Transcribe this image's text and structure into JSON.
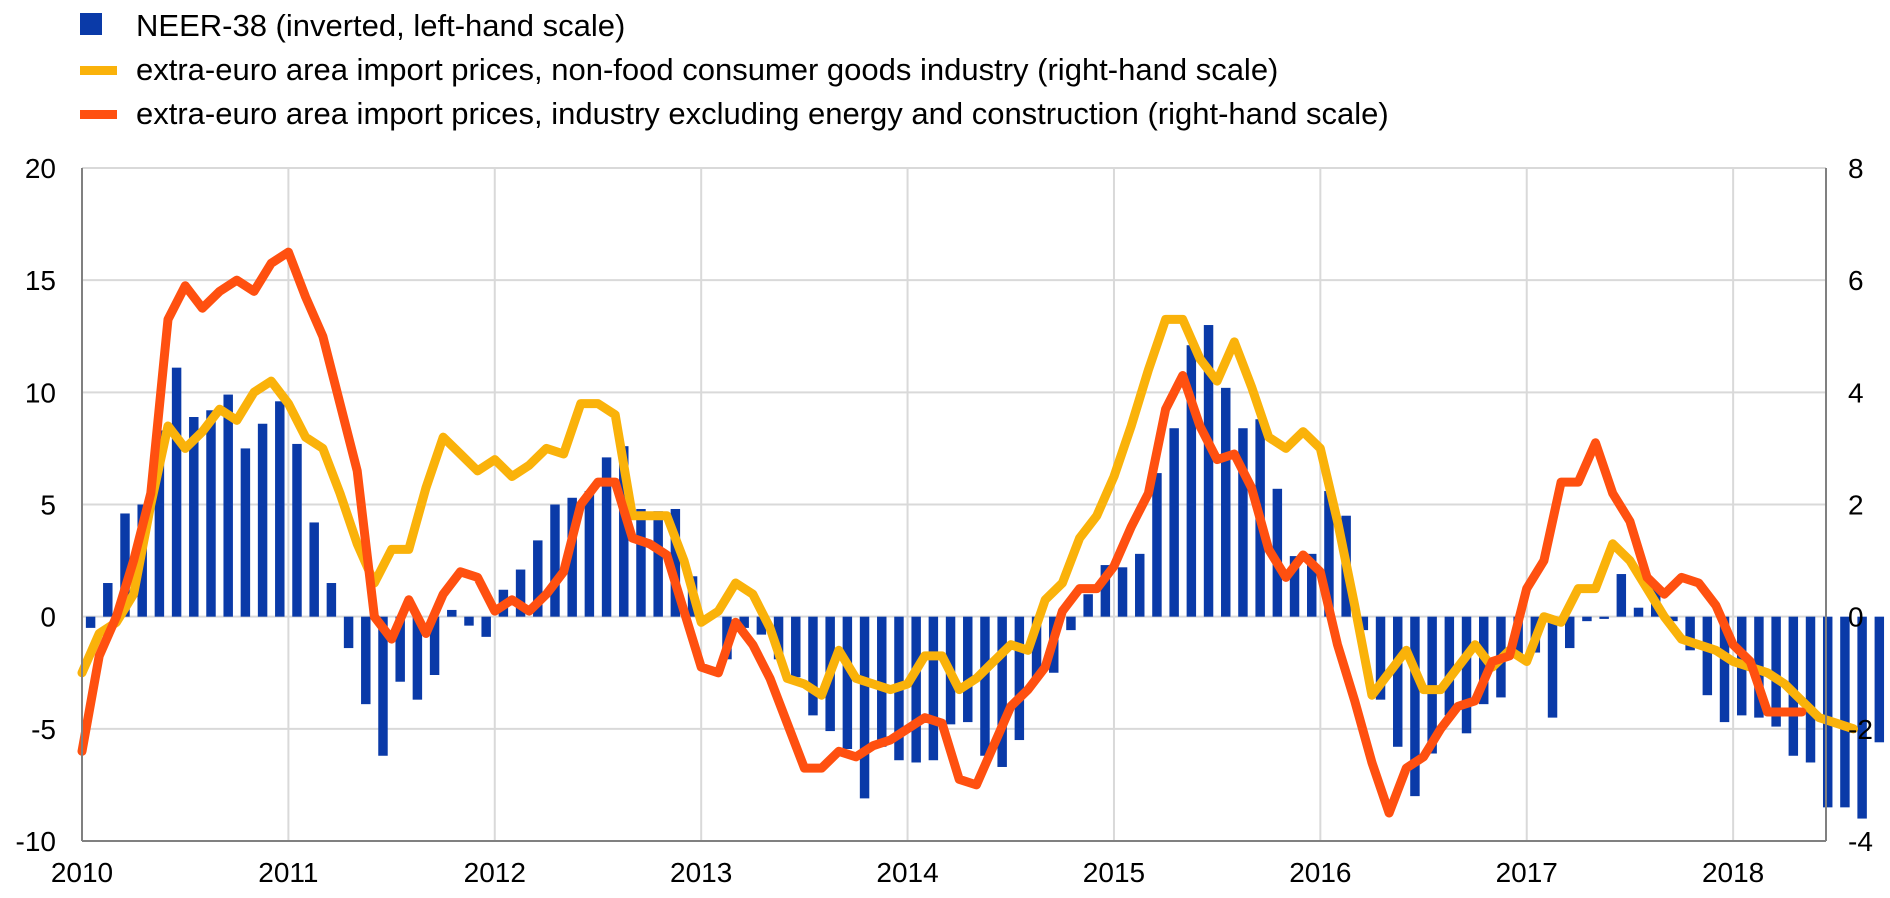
{
  "colors": {
    "neer": "#0a3aa8",
    "nonfood": "#fab20a",
    "industry": "#ff5010",
    "grid": "#d9d9d9",
    "axis": "#808080"
  },
  "chart_data": {
    "type": "bar+line",
    "title": "",
    "xlabel": "",
    "ylabel_left": "",
    "ylabel_right": "",
    "grid": true,
    "legend_position": "top-left",
    "x_tick_labels": [
      "2010",
      "2011",
      "2012",
      "2013",
      "2014",
      "2015",
      "2016",
      "2017",
      "2018"
    ],
    "x_range": [
      2010.0,
      2018.45
    ],
    "y_left": {
      "range": [
        -10,
        20
      ],
      "ticks": [
        -10,
        -5,
        0,
        5,
        10,
        15,
        20
      ]
    },
    "y_right": {
      "range": [
        -4,
        8
      ],
      "ticks": [
        -4,
        -2,
        0,
        2,
        4,
        6,
        8
      ]
    },
    "legend": [
      {
        "label": "NEER-38 (inverted, left-hand scale)",
        "kind": "bar",
        "color_key": "neer"
      },
      {
        "label": "extra-euro area import prices, non-food consumer goods industry (right-hand scale)",
        "kind": "line",
        "color_key": "nonfood"
      },
      {
        "label": "extra-euro area import prices, industry excluding energy and construction (right-hand scale)",
        "kind": "line",
        "color_key": "industry"
      }
    ],
    "series": [
      {
        "name": "NEER-38 (inverted, left-hand scale)",
        "type": "bar",
        "axis": "left",
        "start": "2010-01",
        "frequency": "monthly",
        "values": [
          -0.5,
          1.5,
          4.6,
          5.0,
          8.3,
          11.1,
          8.9,
          9.2,
          9.9,
          7.5,
          8.6,
          9.6,
          7.7,
          4.2,
          1.5,
          -1.4,
          -3.9,
          -6.2,
          -2.9,
          -3.7,
          -2.6,
          0.3,
          -0.4,
          -0.9,
          1.2,
          2.1,
          3.4,
          5.0,
          5.3,
          5.6,
          7.1,
          7.6,
          4.8,
          4.7,
          4.8,
          1.8,
          -0.1,
          -1.9,
          -0.5,
          -0.8,
          -1.9,
          -2.7,
          -4.4,
          -5.1,
          -5.9,
          -8.1,
          -5.8,
          -6.4,
          -6.5,
          -6.4,
          -4.8,
          -4.7,
          -6.2,
          -6.7,
          -5.5,
          -2.8,
          -2.5,
          -0.6,
          1.0,
          2.3,
          2.2,
          2.8,
          6.4,
          8.4,
          12.1,
          13.0,
          10.2,
          8.4,
          8.8,
          5.7,
          2.7,
          2.8,
          5.6,
          4.5,
          -0.6,
          -3.7,
          -5.8,
          -8.0,
          -6.1,
          -4.4,
          -5.2,
          -3.9,
          -3.6,
          -1.8,
          -1.6,
          -4.5,
          -1.4,
          -0.2,
          -0.1,
          1.9,
          0.4,
          1.4,
          -0.2,
          -1.5,
          -3.5,
          -4.7,
          -4.4,
          -4.5,
          -4.9,
          -6.2,
          -6.5,
          -8.5,
          -8.5,
          -9.0,
          -5.6
        ]
      },
      {
        "name": "extra-euro area import prices, non-food consumer goods industry (right-hand scale)",
        "type": "line",
        "axis": "right",
        "start": "2010-01",
        "frequency": "monthly",
        "values": [
          -1.0,
          -0.3,
          -0.1,
          0.4,
          2.0,
          3.4,
          3.0,
          3.3,
          3.7,
          3.5,
          4.0,
          4.2,
          3.8,
          3.2,
          3.0,
          2.2,
          1.3,
          0.6,
          1.2,
          1.2,
          2.3,
          3.2,
          2.9,
          2.6,
          2.8,
          2.5,
          2.7,
          3.0,
          2.9,
          3.8,
          3.8,
          3.6,
          1.8,
          1.8,
          1.8,
          1.0,
          -0.1,
          0.1,
          0.6,
          0.4,
          -0.2,
          -1.1,
          -1.2,
          -1.4,
          -0.6,
          -1.1,
          -1.2,
          -1.3,
          -1.2,
          -0.7,
          -0.7,
          -1.3,
          -1.1,
          -0.8,
          -0.5,
          -0.6,
          0.3,
          0.6,
          1.4,
          1.8,
          2.5,
          3.4,
          4.4,
          5.3,
          5.3,
          4.6,
          4.2,
          4.9,
          4.1,
          3.2,
          3.0,
          3.3,
          3.0,
          1.7,
          0.2,
          -1.4,
          -1.0,
          -0.6,
          -1.3,
          -1.3,
          -0.9,
          -0.5,
          -0.9,
          -0.6,
          -0.8,
          0.0,
          -0.1,
          0.5,
          0.5,
          1.3,
          1.0,
          0.5,
          0.0,
          -0.4,
          -0.5,
          -0.6,
          -0.8,
          -0.9,
          -1.0,
          -1.2,
          -1.5,
          -1.8,
          -1.9,
          -2.0
        ]
      },
      {
        "name": "extra-euro area import prices, industry excluding energy and construction (right-hand scale)",
        "type": "line",
        "axis": "right",
        "start": "2010-01",
        "frequency": "monthly",
        "values": [
          -2.4,
          -0.7,
          0.0,
          1.0,
          2.2,
          5.3,
          5.9,
          5.5,
          5.8,
          6.0,
          5.8,
          6.3,
          6.5,
          5.7,
          5.0,
          3.8,
          2.6,
          0.0,
          -0.4,
          0.3,
          -0.3,
          0.4,
          0.8,
          0.7,
          0.1,
          0.3,
          0.1,
          0.4,
          0.8,
          2.0,
          2.4,
          2.4,
          1.4,
          1.3,
          1.1,
          0.1,
          -0.9,
          -1.0,
          -0.1,
          -0.5,
          -1.1,
          -1.9,
          -2.7,
          -2.7,
          -2.4,
          -2.5,
          -2.3,
          -2.2,
          -2.0,
          -1.8,
          -1.9,
          -2.9,
          -3.0,
          -2.3,
          -1.6,
          -1.3,
          -0.9,
          0.1,
          0.5,
          0.5,
          0.9,
          1.6,
          2.2,
          3.7,
          4.3,
          3.4,
          2.8,
          2.9,
          2.3,
          1.2,
          0.7,
          1.1,
          0.8,
          -0.5,
          -1.5,
          -2.6,
          -3.5,
          -2.7,
          -2.5,
          -2.0,
          -1.6,
          -1.5,
          -0.8,
          -0.7,
          0.5,
          1.0,
          2.4,
          2.4,
          3.1,
          2.2,
          1.7,
          0.7,
          0.4,
          0.7,
          0.6,
          0.2,
          -0.5,
          -0.8,
          -1.7,
          -1.7,
          -1.7
        ]
      }
    ]
  }
}
